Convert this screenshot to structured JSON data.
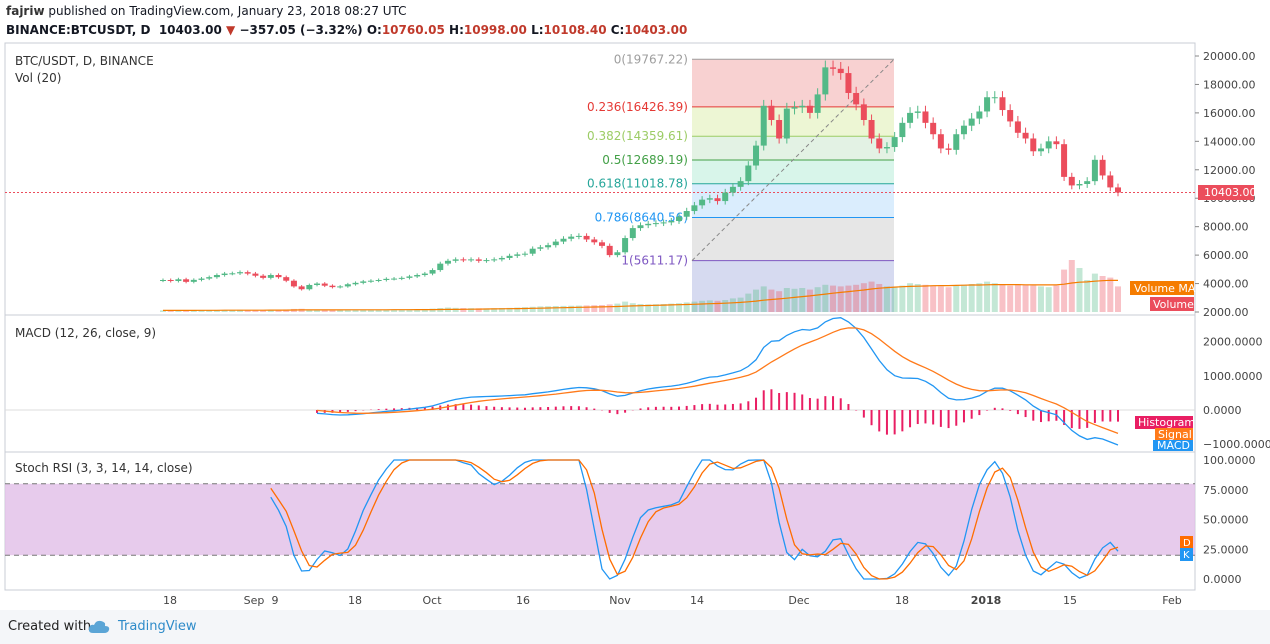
{
  "header": {
    "user": "fajriw",
    "published": "published on TradingView.com, January 23, 2018 08:27 UTC",
    "symbol": "BINANCE:BTCUSDT, D",
    "last": "10403.00",
    "change": "−357.05 (−3.32%)",
    "o_label": "O:",
    "o": "10760.05",
    "h_label": "H:",
    "h": "10998.00",
    "l_label": "L:",
    "l": "10108.40",
    "c_label": "C:",
    "c": "10403.00"
  },
  "footer": {
    "created_with": "Created with",
    "brand": "TradingView"
  },
  "colors": {
    "up": "#53b987",
    "down": "#eb4d5c",
    "macd": "#2196f3",
    "signal": "#ff7a1a",
    "histogram": "#e91e63",
    "rsi_k": "#2196f3",
    "rsi_d": "#ff6d00",
    "rsi_band": "#e1bee7"
  },
  "chart_data": [
    {
      "type": "candlestick",
      "title": "BTC/USDT, D, BINANCE",
      "volume_label": "Vol (20)",
      "yaxis": {
        "ticks": [
          "20000.00",
          "18000.00",
          "16000.00",
          "14000.00",
          "12000.00",
          "10000.00",
          "8000.00",
          "6000.00",
          "4000.00",
          "2000.00"
        ],
        "ylim": [
          2000,
          20000
        ]
      },
      "last_price": "10403.00",
      "volume_ma_label": "Volume MA",
      "volume_tag": "Volume",
      "xaxis": {
        "ticks": [
          "18",
          "Sep",
          "9",
          "18",
          "Oct",
          "16",
          "Nov",
          "14",
          "Dec",
          "18",
          "2018",
          "15",
          "Feb"
        ]
      },
      "fibonacci": [
        {
          "label": "0(19767.22)",
          "value": 19767.22,
          "color": "#9e9e9e"
        },
        {
          "label": "0.236(16426.39)",
          "value": 16426.39,
          "color": "#e53935"
        },
        {
          "label": "0.382(14359.61)",
          "value": 14359.61,
          "color": "#9ccc65"
        },
        {
          "label": "0.5(12689.19)",
          "value": 12689.19,
          "color": "#43a047"
        },
        {
          "label": "0.618(11018.78)",
          "value": 11018.78,
          "color": "#26a69a"
        },
        {
          "label": "0.786(8640.56)",
          "value": 8640.56,
          "color": "#2196f3"
        },
        {
          "label": "1(5611.17)",
          "value": 5611.17,
          "color": "#7e57c2"
        }
      ],
      "price_series": [
        4250,
        4180,
        4300,
        4120,
        4260,
        4350,
        4450,
        4600,
        4700,
        4720,
        4800,
        4700,
        4550,
        4400,
        4600,
        4450,
        4200,
        3800,
        3600,
        3900,
        4000,
        3850,
        3750,
        3800,
        3950,
        4050,
        4150,
        4200,
        4250,
        4330,
        4350,
        4400,
        4500,
        4600,
        4700,
        4950,
        5400,
        5600,
        5700,
        5650,
        5700,
        5600,
        5650,
        5700,
        5800,
        5950,
        6050,
        6100,
        6450,
        6550,
        6700,
        6950,
        7150,
        7300,
        7350,
        7100,
        6900,
        6650,
        6000,
        6200,
        7200,
        7900,
        8100,
        8200,
        8250,
        8300,
        8400,
        8700,
        9100,
        9500,
        9900,
        10000,
        9800,
        10400,
        10800,
        11200,
        12300,
        13700,
        16500,
        15500,
        14200,
        16300,
        16400,
        16500,
        16000,
        17300,
        19200,
        19100,
        18800,
        17400,
        16600,
        15500,
        14200,
        13500,
        13600,
        14300,
        15300,
        16000,
        16100,
        15300,
        14500,
        13500,
        13400,
        14500,
        15100,
        15600,
        16100,
        17100,
        17100,
        16200,
        15400,
        14600,
        14200,
        13300,
        13500,
        14000,
        13800,
        11500,
        10900,
        11000,
        11200,
        12700,
        11600,
        10760,
        10403
      ],
      "volume_series": [
        200,
        210,
        205,
        215,
        200,
        220,
        230,
        250,
        240,
        230,
        260,
        250,
        240,
        250,
        280,
        300,
        320,
        380,
        400,
        300,
        270,
        260,
        250,
        240,
        250,
        260,
        270,
        260,
        280,
        290,
        300,
        310,
        330,
        350,
        380,
        420,
        500,
        560,
        520,
        500,
        480,
        460,
        450,
        470,
        500,
        520,
        560,
        600,
        650,
        700,
        720,
        750,
        760,
        780,
        800,
        820,
        850,
        870,
        950,
        1050,
        1300,
        1100,
        1000,
        950,
        980,
        1000,
        1050,
        1100,
        1200,
        1300,
        1400,
        1450,
        1400,
        1500,
        1700,
        1800,
        2300,
        2800,
        3200,
        2800,
        2600,
        3000,
        2900,
        3000,
        2800,
        3100,
        3400,
        3300,
        3200,
        3300,
        3400,
        3600,
        3800,
        3500,
        3200,
        3100,
        3300,
        3600,
        3500,
        3400,
        3300,
        3200,
        3100,
        3300,
        3400,
        3500,
        3600,
        3800,
        3600,
        3400,
        3300,
        3500,
        3400,
        3300,
        3200,
        3100,
        3300,
        5300,
        6500,
        5500,
        4000,
        4800,
        4500,
        4300,
        3200
      ]
    },
    {
      "type": "line",
      "title": "MACD (12, 26, close, 9)",
      "yaxis": {
        "ticks": [
          "2000.0000",
          "1000.0000",
          "0.0000",
          "−1000.0000"
        ],
        "ylim": [
          -1000,
          2500
        ]
      },
      "series_labels": {
        "histogram": "Histogram",
        "signal": "Signal",
        "macd": "MACD"
      }
    },
    {
      "type": "line",
      "title": "Stoch RSI (3, 3, 14, 14, close)",
      "yaxis": {
        "ticks": [
          "100.0000",
          "75.0000",
          "50.0000",
          "25.0000",
          "0.0000"
        ],
        "ylim": [
          0,
          100
        ]
      },
      "bands": [
        80,
        20
      ],
      "badges": {
        "d": "D",
        "k": "K"
      }
    }
  ]
}
